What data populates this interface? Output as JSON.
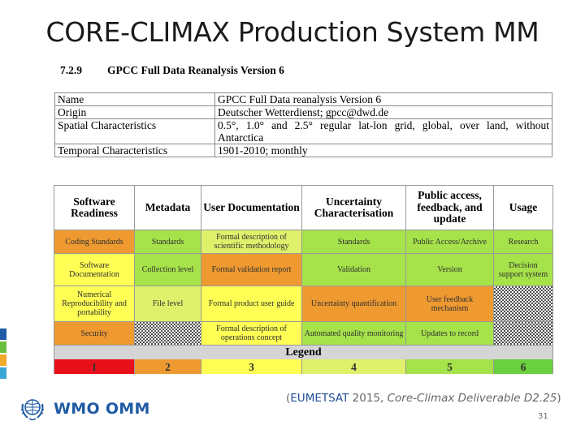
{
  "slide": {
    "title": "CORE-CLIMAX Production System MM",
    "page_number": "31"
  },
  "section": {
    "number": "7.2.9",
    "title": "GPCC Full Data Reanalysis Version 6"
  },
  "info_table": [
    {
      "label": "Name",
      "value": "GPCC Full Data reanalysis Version 6"
    },
    {
      "label": "Origin",
      "value": "Deutscher Wetterdienst; gpcc@dwd.de"
    },
    {
      "label": "Spatial Characteristics",
      "value": "0.5°, 1.0° and 2.5° regular lat-lon grid, global, over land, without Antarctica"
    },
    {
      "label": "Temporal Characteristics",
      "value": "1901-2010; monthly"
    }
  ],
  "matrix": {
    "headers": [
      "Software Readiness",
      "Metadata",
      "User Documentation",
      "Uncertainty Characterisation",
      "Public access, feedback, and update",
      "Usage"
    ],
    "rows": [
      [
        {
          "text": "Coding Standards",
          "level": 2
        },
        {
          "text": "Standards",
          "level": 5
        },
        {
          "text": "Formal description of scientific methodology",
          "level": 4
        },
        {
          "text": "Standards",
          "level": 5
        },
        {
          "text": "Public Access/Archive",
          "level": 5
        },
        {
          "text": "Research",
          "level": 5
        }
      ],
      [
        {
          "text": "Software Documentation",
          "level": 3
        },
        {
          "text": "Collection level",
          "level": 5
        },
        {
          "text": "Formal validation report",
          "level": 2
        },
        {
          "text": "Validation",
          "level": 5
        },
        {
          "text": "Version",
          "level": 5
        },
        {
          "text": "Decision support system",
          "level": 5
        }
      ],
      [
        {
          "text": "Numerical Reproducibility and portability",
          "level": 3
        },
        {
          "text": "File level",
          "level": 4
        },
        {
          "text": "Formal product user guide",
          "level": 3
        },
        {
          "text": "Uncertainty quantification",
          "level": 2
        },
        {
          "text": "User feedback mechanism",
          "level": 2
        },
        {
          "text": "",
          "level": 0
        }
      ],
      [
        {
          "text": "Security",
          "level": 2
        },
        {
          "text": "",
          "level": 0
        },
        {
          "text": "Formal description of operations concept",
          "level": 3
        },
        {
          "text": "Automated quality monitoring",
          "level": 5
        },
        {
          "text": "Updates to record",
          "level": 5
        },
        {
          "text": "",
          "level": 0
        }
      ]
    ],
    "legend_title": "Legend",
    "legend": [
      "1",
      "2",
      "3",
      "4",
      "5",
      "6"
    ]
  },
  "citation": {
    "open": "(",
    "org": "EUMETSAT",
    "year": " 2015, ",
    "doc": "Core-Climax Deliverable D2.25",
    "close": ")"
  },
  "logo": {
    "text": "WMO OMM",
    "icon": "wmo-emblem-icon"
  },
  "colors": {
    "level_1": "#e8101a",
    "level_2": "#ee9a31",
    "level_3": "#fefe54",
    "level_4": "#dff06b",
    "level_5": "#a6e24a",
    "level_6": "#6bd03f",
    "stripe_colors": [
      "#1f5aa6",
      "#6bbf3e",
      "#f2a928",
      "#39a7d6"
    ]
  }
}
